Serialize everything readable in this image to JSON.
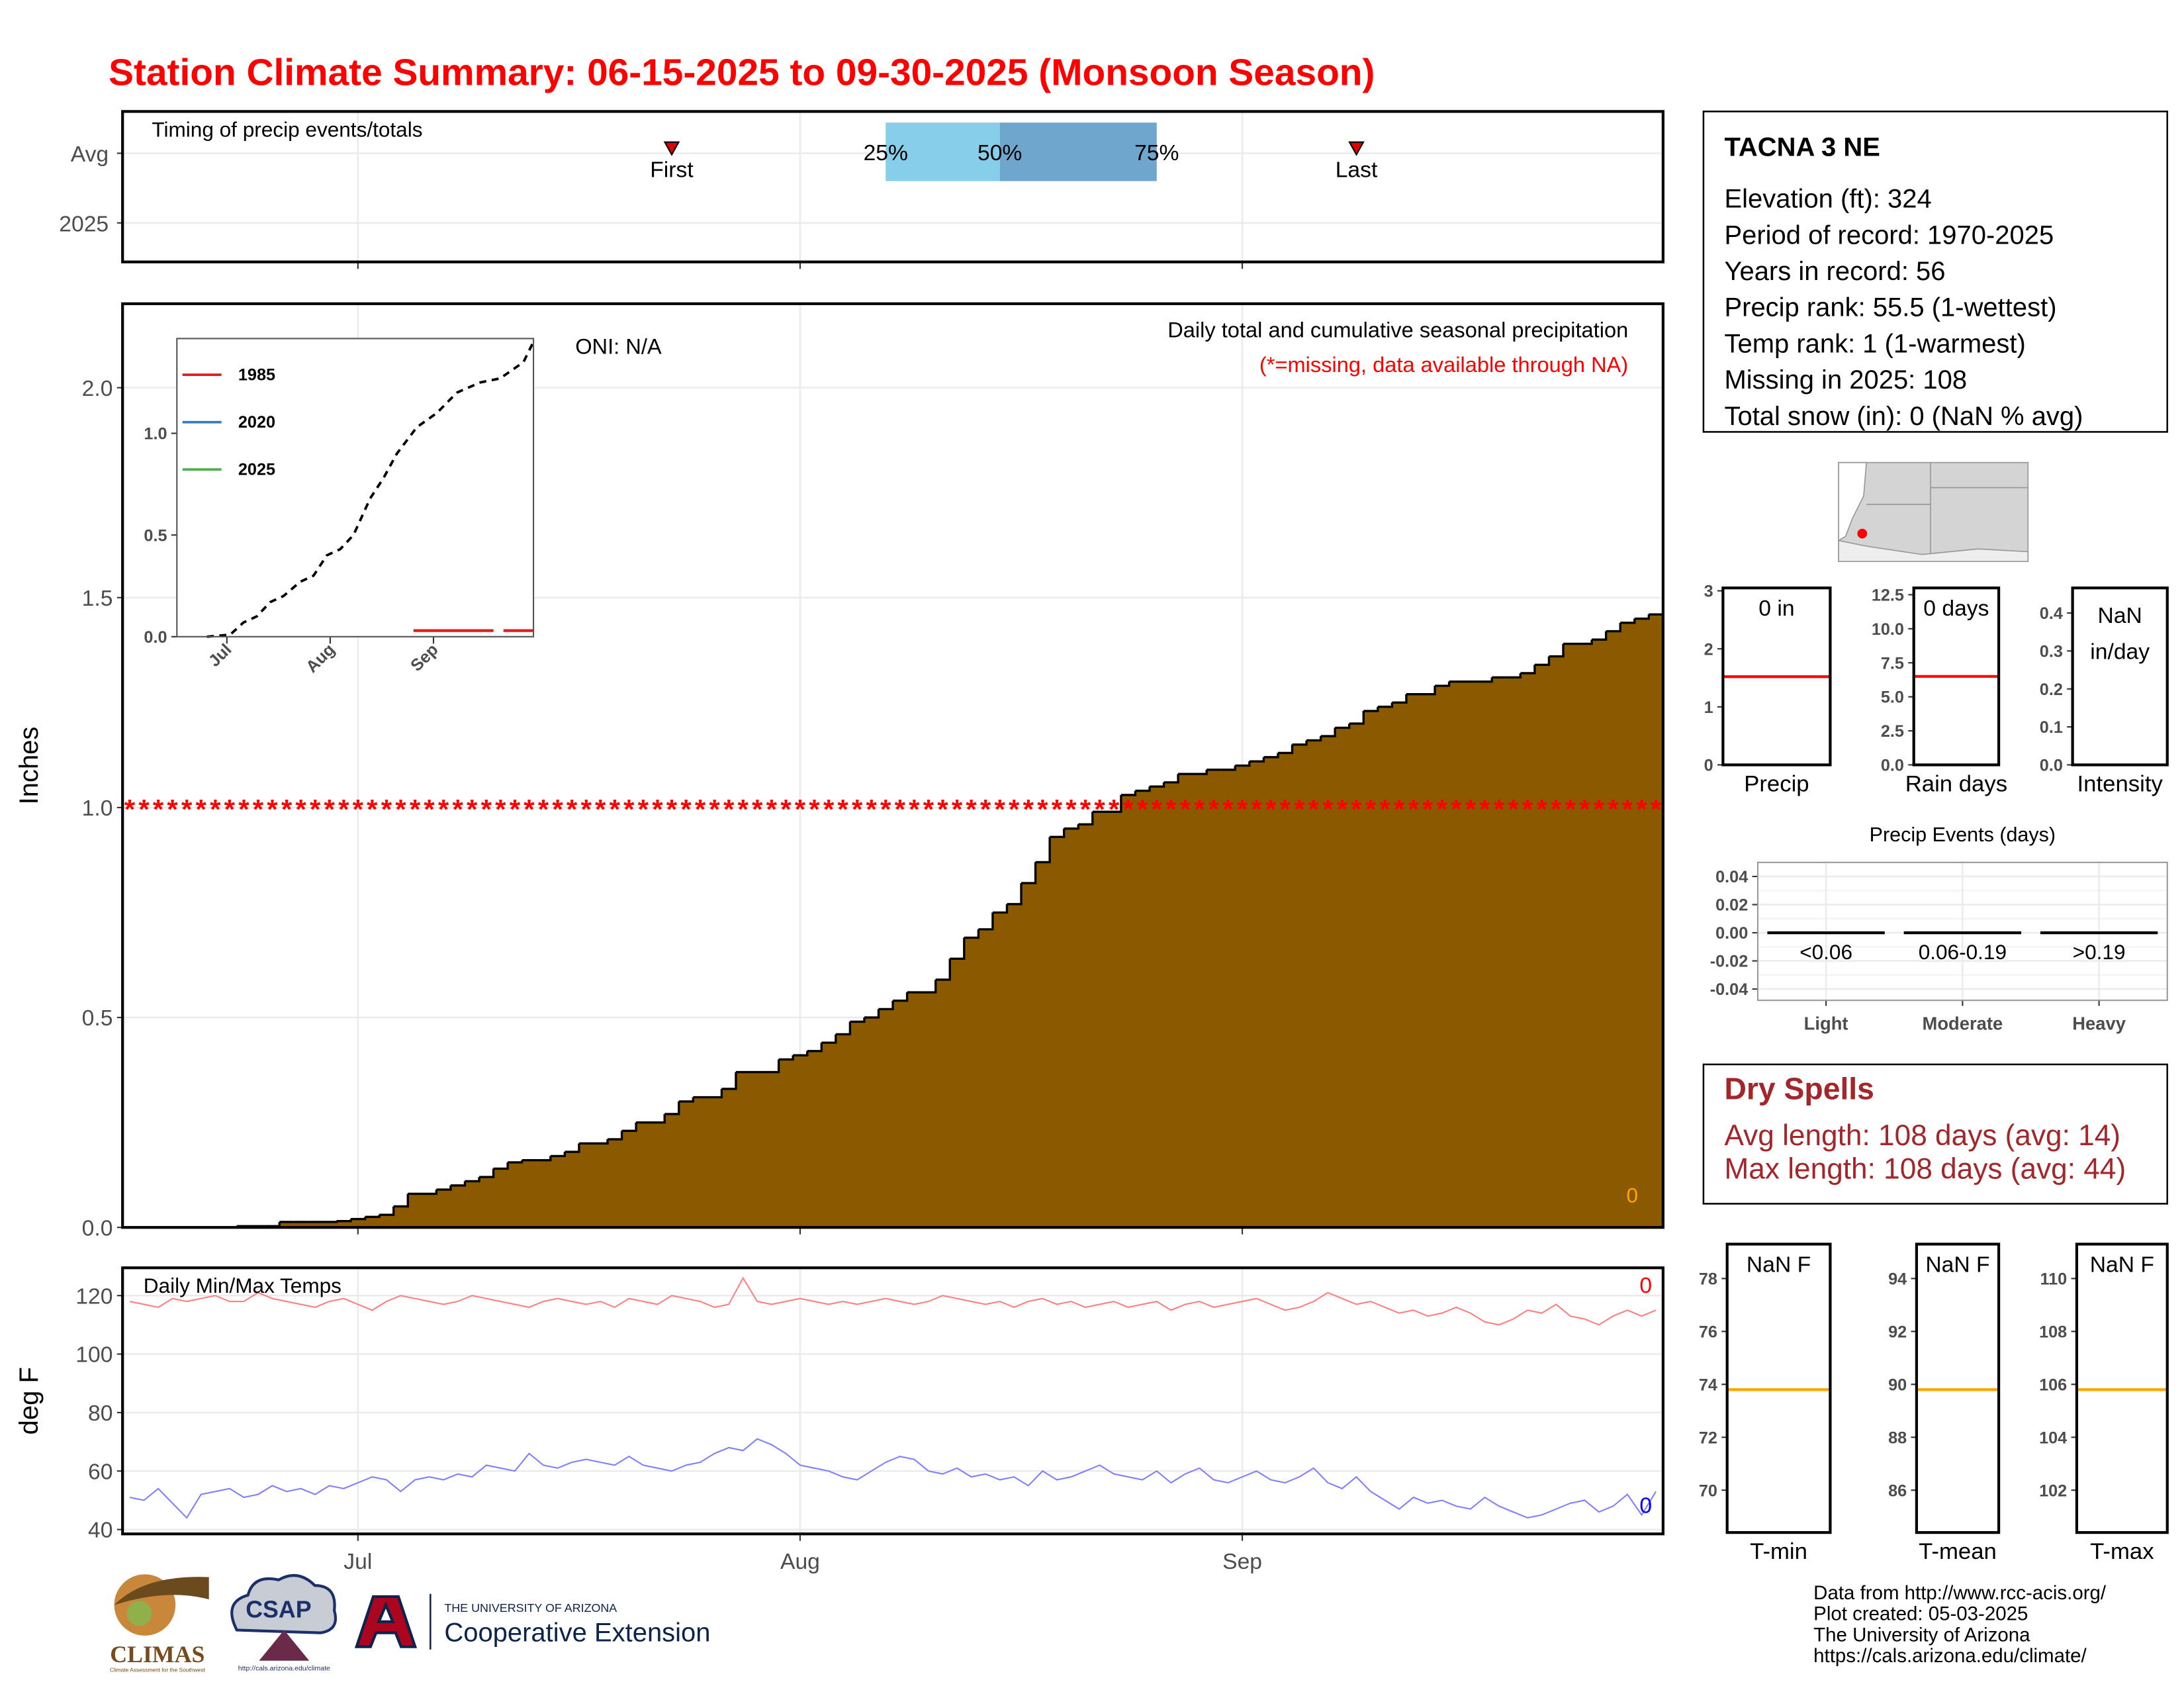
{
  "title": "Station Climate Summary: 06-15-2025 to 09-30-2025 (Monsoon Season)",
  "station": {
    "name": "TACNA 3 NE",
    "lines": [
      "Elevation (ft): 324",
      "Period of record: 1970-2025",
      "Years in record: 56",
      "Precip rank: 55.5 (1-wettest)",
      "Temp rank: 1 (1-warmest)",
      "Missing in 2025: 108",
      "Total snow (in): 0 (NaN % avg)"
    ]
  },
  "dry_spells": {
    "title": "Dry Spells",
    "lines": [
      "Avg length: 108 days (avg: 14)",
      "Max length: 108 days (avg: 44)"
    ]
  },
  "footer": [
    "Data from http://www.rcc-acis.org/",
    "Plot created: 05-03-2025",
    "The University of Arizona",
    "https://cals.arizona.edu/climate/"
  ],
  "logos": {
    "climas": "CLIMAS",
    "climas_sub": "Climate Assessment for the Southwest",
    "csap": "CSAP",
    "csap_url": "http://cals.arizona.edu/climate",
    "ua": "THE UNIVERSITY OF ARIZONA",
    "ua_unit": "Cooperative Extension"
  },
  "chart_data": [
    {
      "type": "timing",
      "title": "Timing of precip events/totals",
      "categories": [
        "Avg",
        "2025"
      ],
      "xlim": [
        -0.5,
        107.5
      ],
      "xticks": [
        16,
        47,
        78
      ],
      "grid": true,
      "quartiles": {
        "labels": [
          "25%",
          "50%",
          "75%"
        ],
        "x": [
          53,
          61,
          72
        ],
        "colors": [
          "#87ceeb",
          "#6fa6cd"
        ]
      },
      "events": {
        "labels": [
          "First",
          "Last"
        ],
        "x": [
          38,
          86
        ],
        "color": "#e00000"
      }
    },
    {
      "type": "area",
      "title": "Daily total and cumulative seasonal precipitation",
      "subtitle": "(*=missing, data available through NA)",
      "annotation": "ONI: N/A",
      "corner_note": "0",
      "y_label": "Inches",
      "color": "#8b5a00",
      "xlim": [
        -0.5,
        107.5
      ],
      "xticks": [
        16,
        47,
        78
      ],
      "ylim": [
        0,
        2.2
      ],
      "yticks": [
        {
          "value": 0,
          "label": "0.0"
        },
        {
          "value": 0.5,
          "label": "0.5"
        },
        {
          "value": 1,
          "label": "1.0"
        },
        {
          "value": 1.5,
          "label": "1.5"
        },
        {
          "value": 2,
          "label": "2.0"
        }
      ],
      "grid": true,
      "missing": {
        "symbol": "*",
        "y": 1,
        "color": "#ff0000"
      },
      "x": [
        0,
        1,
        2,
        3,
        4,
        5,
        6,
        7,
        8,
        9,
        10,
        11,
        12,
        13,
        14,
        15,
        16,
        17,
        18,
        19,
        20,
        21,
        22,
        23,
        24,
        25,
        26,
        27,
        28,
        29,
        30,
        31,
        32,
        33,
        34,
        35,
        36,
        37,
        38,
        39,
        40,
        41,
        42,
        43,
        44,
        45,
        46,
        47,
        48,
        49,
        50,
        51,
        52,
        53,
        54,
        55,
        56,
        57,
        58,
        59,
        60,
        61,
        62,
        63,
        64,
        65,
        66,
        67,
        68,
        69,
        70,
        71,
        72,
        73,
        74,
        75,
        76,
        77,
        78,
        79,
        80,
        81,
        82,
        83,
        84,
        85,
        86,
        87,
        88,
        89,
        90,
        91,
        92,
        93,
        94,
        95,
        96,
        97,
        98,
        99,
        100,
        101,
        102,
        103,
        104,
        105,
        106,
        107
      ],
      "values": [
        0,
        0,
        0,
        0,
        0,
        0,
        0,
        0,
        0.003,
        0.003,
        0.003,
        0.013,
        0.013,
        0.013,
        0.013,
        0.015,
        0.02,
        0.025,
        0.03,
        0.05,
        0.08,
        0.08,
        0.09,
        0.1,
        0.11,
        0.12,
        0.14,
        0.155,
        0.16,
        0.16,
        0.17,
        0.18,
        0.2,
        0.2,
        0.21,
        0.23,
        0.25,
        0.25,
        0.27,
        0.3,
        0.31,
        0.31,
        0.33,
        0.37,
        0.37,
        0.37,
        0.4,
        0.41,
        0.42,
        0.44,
        0.46,
        0.49,
        0.5,
        0.52,
        0.54,
        0.56,
        0.56,
        0.59,
        0.64,
        0.69,
        0.71,
        0.75,
        0.77,
        0.82,
        0.87,
        0.93,
        0.95,
        0.96,
        0.99,
        0.99,
        1.03,
        1.04,
        1.05,
        1.06,
        1.08,
        1.08,
        1.09,
        1.09,
        1.1,
        1.11,
        1.12,
        1.13,
        1.15,
        1.16,
        1.17,
        1.19,
        1.2,
        1.23,
        1.24,
        1.25,
        1.27,
        1.27,
        1.29,
        1.3,
        1.3,
        1.3,
        1.31,
        1.31,
        1.32,
        1.34,
        1.36,
        1.39,
        1.39,
        1.4,
        1.42,
        1.44,
        1.45,
        1.46
      ]
    },
    {
      "type": "line",
      "xlim": [
        1,
        108
      ],
      "ylim": [
        0,
        1.466
      ],
      "xticks": [
        {
          "value": 16,
          "label": "Jul"
        },
        {
          "value": 47,
          "label": "Aug"
        },
        {
          "value": 78,
          "label": "Sep"
        }
      ],
      "yticks": [
        {
          "value": 0,
          "label": "0.0"
        },
        {
          "value": 0.5,
          "label": "0.5"
        },
        {
          "value": 1,
          "label": "1.0"
        }
      ],
      "avg_line": {
        "color": "#000000",
        "x": [
          10,
          17,
          21,
          25,
          29,
          33,
          38,
          42,
          46,
          50,
          54,
          59,
          63,
          67,
          73,
          79,
          85,
          92,
          98,
          105,
          108
        ],
        "values": [
          0,
          0.01,
          0.07,
          0.1,
          0.17,
          0.2,
          0.27,
          0.3,
          0.4,
          0.43,
          0.5,
          0.68,
          0.78,
          0.9,
          1.03,
          1.1,
          1.2,
          1.25,
          1.27,
          1.35,
          1.45
        ]
      },
      "series": [
        {
          "name": "1985",
          "color": "#e41a1c",
          "x": [
            72,
            96,
            97,
            99,
            108
          ],
          "values": [
            0.03,
            0.03,
            null,
            0.03,
            0.03
          ]
        },
        {
          "name": "2020",
          "color": "#377eb8",
          "x": [],
          "values": []
        },
        {
          "name": "2025",
          "color": "#4daf4a",
          "x": [],
          "values": []
        }
      ]
    },
    {
      "type": "line",
      "title": "Daily Min/Max Temps",
      "y_label": "deg F",
      "xlim": [
        -0.5,
        107.5
      ],
      "ylim": [
        38.5,
        129.5
      ],
      "xticks": [
        {
          "value": 16,
          "label": "Jul"
        },
        {
          "value": 47,
          "label": "Aug"
        },
        {
          "value": 78,
          "label": "Sep"
        }
      ],
      "yticks": [
        40,
        60,
        80,
        100,
        120
      ],
      "grid": true,
      "annotations": [
        {
          "text": "0",
          "color": "#ff0000"
        },
        {
          "text": "0",
          "color": "#0000ff"
        }
      ],
      "x": [
        0,
        1,
        2,
        3,
        4,
        5,
        6,
        7,
        8,
        9,
        10,
        11,
        12,
        13,
        14,
        15,
        16,
        17,
        18,
        19,
        20,
        21,
        22,
        23,
        24,
        25,
        26,
        27,
        28,
        29,
        30,
        31,
        32,
        33,
        34,
        35,
        36,
        37,
        38,
        39,
        40,
        41,
        42,
        43,
        44,
        45,
        46,
        47,
        48,
        49,
        50,
        51,
        52,
        53,
        54,
        55,
        56,
        57,
        58,
        59,
        60,
        61,
        62,
        63,
        64,
        65,
        66,
        67,
        68,
        69,
        70,
        71,
        72,
        73,
        74,
        75,
        76,
        77,
        78,
        79,
        80,
        81,
        82,
        83,
        84,
        85,
        86,
        87,
        88,
        89,
        90,
        91,
        92,
        93,
        94,
        95,
        96,
        97,
        98,
        99,
        100,
        101,
        102,
        103,
        104,
        105,
        106,
        107
      ],
      "series": [
        {
          "color": "#ff8080",
          "values": [
            118,
            117,
            116,
            119,
            118,
            119,
            120,
            118,
            118,
            121,
            119,
            118,
            117,
            116,
            118,
            119,
            117,
            115,
            118,
            120,
            119,
            118,
            117,
            118,
            120,
            119,
            118,
            117,
            116,
            118,
            119,
            118,
            117,
            118,
            116,
            119,
            118,
            117,
            120,
            119,
            118,
            116,
            117,
            126,
            118,
            117,
            118,
            119,
            118,
            117,
            118,
            117,
            118,
            119,
            118,
            117,
            118,
            120,
            119,
            118,
            117,
            118,
            116,
            118,
            119,
            117,
            118,
            116,
            117,
            118,
            116,
            117,
            118,
            115,
            117,
            118,
            116,
            117,
            118,
            119,
            117,
            115,
            116,
            118,
            121,
            119,
            117,
            118,
            116,
            114,
            115,
            113,
            114,
            116,
            114,
            111,
            110,
            112,
            115,
            114,
            117,
            113,
            112,
            110,
            113,
            115,
            113,
            115
          ]
        },
        {
          "color": "#8080ff",
          "values": [
            51,
            50,
            54,
            49,
            44,
            52,
            53,
            54,
            51,
            52,
            55,
            53,
            54,
            52,
            55,
            54,
            56,
            58,
            57,
            53,
            57,
            58,
            57,
            59,
            58,
            62,
            61,
            60,
            66,
            62,
            61,
            63,
            64,
            63,
            62,
            65,
            62,
            61,
            60,
            62,
            63,
            66,
            68,
            67,
            71,
            69,
            66,
            62,
            61,
            60,
            58,
            57,
            60,
            63,
            65,
            64,
            60,
            59,
            61,
            58,
            59,
            57,
            58,
            55,
            60,
            57,
            58,
            60,
            62,
            59,
            58,
            57,
            60,
            56,
            59,
            61,
            57,
            56,
            58,
            60,
            57,
            56,
            58,
            61,
            56,
            54,
            58,
            53,
            50,
            47,
            51,
            49,
            50,
            48,
            47,
            51,
            48,
            46,
            44,
            45,
            47,
            49,
            50,
            46,
            48,
            52,
            45,
            53
          ]
        }
      ]
    },
    {
      "type": "refline",
      "title": "Precip",
      "label": [
        "0 in"
      ],
      "value": 1.52,
      "color": "#ff0000",
      "ylim": [
        0,
        3.05
      ],
      "yticks": [
        0,
        1,
        2,
        3
      ]
    },
    {
      "type": "refline",
      "title": "Rain days",
      "label": [
        "0 days"
      ],
      "value": 6.5,
      "color": "#ff0000",
      "ylim": [
        0,
        13
      ],
      "yticks": [
        {
          "value": 0,
          "label": "0.0"
        },
        {
          "value": 2.5,
          "label": "2.5"
        },
        {
          "value": 5,
          "label": "5.0"
        },
        {
          "value": 7.5,
          "label": "7.5"
        },
        {
          "value": 10,
          "label": "10.0"
        },
        {
          "value": 12.5,
          "label": "12.5"
        }
      ]
    },
    {
      "type": "refline",
      "title": "Intensity",
      "label": [
        "NaN",
        "in/day"
      ],
      "value": null,
      "color": "#ff0000",
      "ylim": [
        0,
        0.466
      ],
      "yticks": [
        {
          "value": 0,
          "label": "0.0"
        },
        {
          "value": 0.1,
          "label": "0.1"
        },
        {
          "value": 0.2,
          "label": "0.2"
        },
        {
          "value": 0.3,
          "label": "0.3"
        },
        {
          "value": 0.4,
          "label": "0.4"
        }
      ]
    },
    {
      "type": "bar",
      "title": "Precip Events (days)",
      "categories": [
        "Light",
        "Moderate",
        "Heavy"
      ],
      "sublabels": [
        "<0.06",
        "0.06-0.19",
        ">0.19"
      ],
      "values": [
        0,
        0,
        0
      ],
      "color": "#000000",
      "ylim": [
        -0.048,
        0.05
      ],
      "grid": true,
      "yticks": [
        {
          "value": 0.04,
          "label": "0.04"
        },
        {
          "value": 0.02,
          "label": "0.02"
        },
        {
          "value": 0,
          "label": "0.00"
        },
        {
          "value": -0.02,
          "label": "-0.02"
        },
        {
          "value": -0.04,
          "label": "-0.04"
        }
      ]
    },
    {
      "type": "refline",
      "title": "T-min",
      "label": [
        "NaN F"
      ],
      "value": 73.8,
      "color": "#ffa500",
      "ylim": [
        68.4,
        79.3
      ],
      "yticks": [
        70,
        72,
        74,
        76,
        78
      ]
    },
    {
      "type": "refline",
      "title": "T-mean",
      "label": [
        "NaN F"
      ],
      "value": 89.8,
      "color": "#ffa500",
      "ylim": [
        84.4,
        95.3
      ],
      "yticks": [
        86,
        88,
        90,
        92,
        94
      ]
    },
    {
      "type": "refline",
      "title": "T-max",
      "label": [
        "NaN F"
      ],
      "value": 105.8,
      "color": "#ffa500",
      "ylim": [
        100.4,
        111.3
      ],
      "yticks": [
        102,
        104,
        106,
        108,
        110
      ]
    }
  ]
}
